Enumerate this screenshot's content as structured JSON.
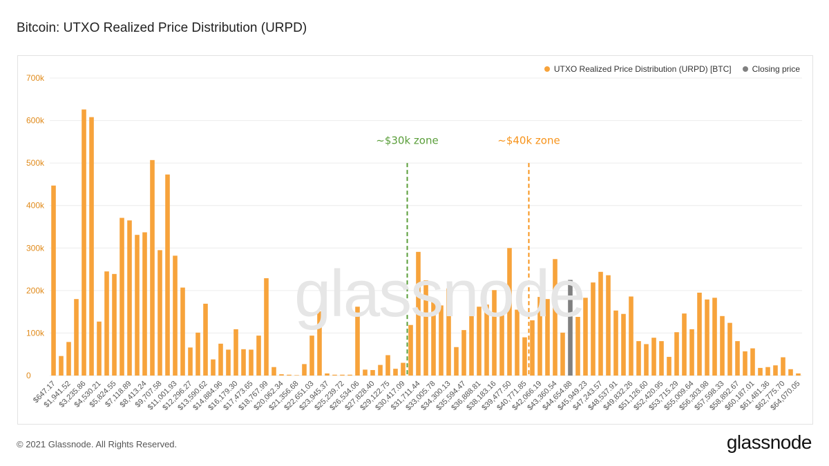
{
  "title": "Bitcoin: UTXO Realized Price Distribution (URPD)",
  "watermark": "glassnode",
  "footer": "© 2021 Glassnode. All Rights Reserved.",
  "brand": "glassnode",
  "colors": {
    "bar": "#f7a33b",
    "closing": "#808080",
    "zone30": "#5a9e3a",
    "zone40": "#f7931a",
    "axis_text": "#e08a1a"
  },
  "annotations": [
    {
      "label": "~$30k zone",
      "x": "$30,417.09",
      "color": "#5a9e3a"
    },
    {
      "label": "~$40k zone",
      "x": "$40,771.85",
      "color": "#f7931a"
    }
  ],
  "chart_data": {
    "type": "bar",
    "title": "Bitcoin: UTXO Realized Price Distribution (URPD)",
    "xlabel": "",
    "ylabel": "",
    "ylim": [
      0,
      700000
    ],
    "yticks": [
      "0",
      "100k",
      "200k",
      "300k",
      "400k",
      "500k",
      "600k",
      "700k"
    ],
    "grid": true,
    "legend_position": "top-right",
    "legend": [
      {
        "name": "UTXO Realized Price Distribution (URPD) [BTC]",
        "color": "#f7a33b"
      },
      {
        "name": "Closing price",
        "color": "#808080"
      }
    ],
    "x_tick_labels": [
      "$647.17",
      "$1,941.52",
      "$3,235.86",
      "$4,530.21",
      "$5,824.55",
      "$7,118.89",
      "$8,413.24",
      "$9,707.58",
      "$11,001.93",
      "$12,296.27",
      "$13,590.62",
      "$14,884.96",
      "$16,179.30",
      "$17,473.65",
      "$18,767.99",
      "$20,062.34",
      "$21,356.68",
      "$22,651.03",
      "$23,945.37",
      "$25,239.72",
      "$26,534.06",
      "$27,828.40",
      "$29,122.75",
      "$30,417.09",
      "$31,711.44",
      "$33,005.78",
      "$34,300.13",
      "$35,594.47",
      "$36,888.81",
      "$38,183.16",
      "$39,477.50",
      "$40,771.85",
      "$42,066.19",
      "$43,360.54",
      "$44,654.88",
      "$45,949.23",
      "$47,243.57",
      "$48,537.91",
      "$49,832.26",
      "$51,126.60",
      "$52,420.95",
      "$53,715.29",
      "$55,009.64",
      "$56,303.98",
      "$57,598.33",
      "$58,892.67",
      "$60,187.01",
      "$61,481.36",
      "$62,775.70",
      "$64,070.05"
    ],
    "closing_price_index": 68,
    "values": [
      447000,
      46000,
      79000,
      180000,
      626000,
      608000,
      127000,
      245000,
      239000,
      371000,
      365000,
      331000,
      337000,
      507000,
      295000,
      473000,
      282000,
      207000,
      66000,
      101000,
      169000,
      38000,
      75000,
      61000,
      109000,
      62000,
      61000,
      94000,
      229000,
      20000,
      3000,
      2000,
      1000,
      27000,
      94000,
      151000,
      5000,
      2000,
      2000,
      2000,
      162000,
      14000,
      13000,
      25000,
      48000,
      16000,
      30000,
      119000,
      291000,
      224000,
      178000,
      165000,
      205000,
      67000,
      107000,
      141000,
      162000,
      167000,
      201000,
      148000,
      300000,
      155000,
      90000,
      130000,
      185000,
      180000,
      274000,
      101000,
      225000,
      138000,
      183000,
      219000,
      244000,
      236000,
      153000,
      145000,
      186000,
      81000,
      74000,
      89000,
      81000,
      44000,
      102000,
      146000,
      109000,
      195000,
      179000,
      183000,
      140000,
      124000,
      81000,
      57000,
      64000,
      18000,
      20000,
      24000,
      43000,
      15000,
      5000
    ]
  }
}
